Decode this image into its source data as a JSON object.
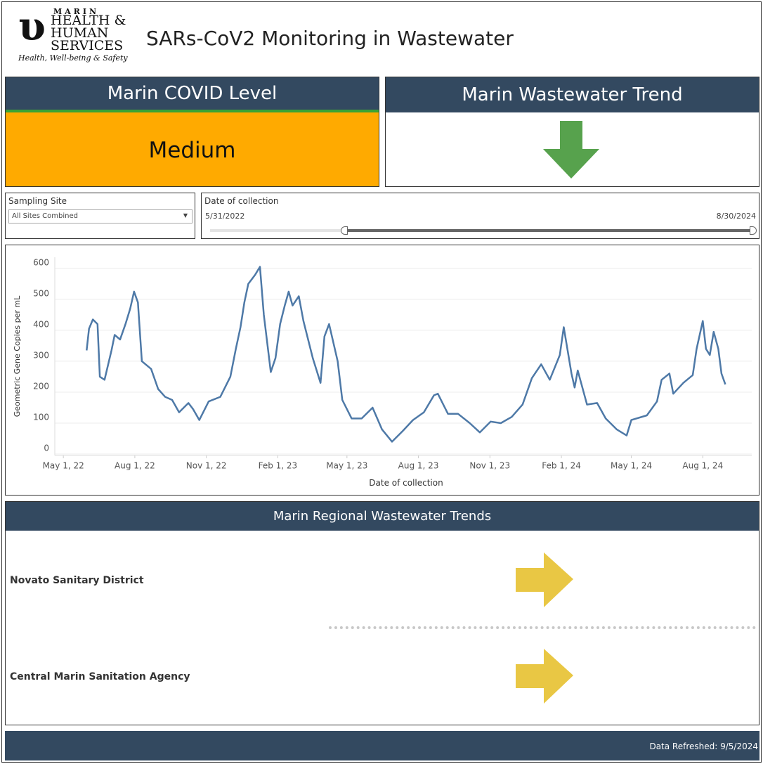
{
  "header": {
    "logo": {
      "line1": "MARIN",
      "line2": "HEALTH &",
      "line3": "HUMAN",
      "line4": "SERVICES",
      "tagline": "Health, Well-being & Safety"
    },
    "title": "SARs-CoV2 Monitoring in Wastewater"
  },
  "cards": {
    "level": {
      "title": "Marin COVID Level",
      "value": "Medium"
    },
    "trend": {
      "title": "Marin Wastewater Trend"
    }
  },
  "filters": {
    "site": {
      "label": "Sampling Site",
      "value": "All Sites Combined"
    },
    "date": {
      "label": "Date of collection",
      "start": "5/31/2022",
      "end": "8/30/2024"
    }
  },
  "chart_data": {
    "type": "line",
    "xlabel": "Date of collection",
    "ylabel": "Geometric Gene Copies per mL",
    "color": "#4e79a7",
    "grid": true,
    "xlim": [
      "2022-04-20",
      "2024-10-03"
    ],
    "xticks": [
      {
        "value": "2022-05-01",
        "label": "May 1, 22"
      },
      {
        "value": "2022-08-01",
        "label": "Aug 1, 22"
      },
      {
        "value": "2022-11-01",
        "label": "Nov 1, 22"
      },
      {
        "value": "2023-02-01",
        "label": "Feb 1, 23"
      },
      {
        "value": "2023-05-01",
        "label": "May 1, 23"
      },
      {
        "value": "2023-08-01",
        "label": "Aug 1, 23"
      },
      {
        "value": "2023-11-01",
        "label": "Nov 1, 23"
      },
      {
        "value": "2024-02-01",
        "label": "Feb 1, 24"
      },
      {
        "value": "2024-05-01",
        "label": "May 1, 24"
      },
      {
        "value": "2024-08-01",
        "label": "Aug 1, 24"
      }
    ],
    "ylim": [
      0,
      636
    ],
    "yticks": [
      0,
      100,
      200,
      300,
      400,
      500,
      600
    ],
    "x": [
      "2022-05-31",
      "2022-06-03",
      "2022-06-08",
      "2022-06-14",
      "2022-06-17",
      "2022-06-23",
      "2022-07-02",
      "2022-07-06",
      "2022-07-13",
      "2022-07-20",
      "2022-07-26",
      "2022-07-31",
      "2022-08-05",
      "2022-08-10",
      "2022-08-22",
      "2022-08-31",
      "2022-09-09",
      "2022-09-18",
      "2022-09-27",
      "2022-10-09",
      "2022-10-15",
      "2022-10-23",
      "2022-11-04",
      "2022-11-19",
      "2022-12-02",
      "2022-12-09",
      "2022-12-15",
      "2022-12-20",
      "2022-12-25",
      "2023-01-03",
      "2023-01-09",
      "2023-01-14",
      "2023-01-23",
      "2023-01-29",
      "2023-02-04",
      "2023-02-10",
      "2023-02-15",
      "2023-02-20",
      "2023-02-28",
      "2023-03-06",
      "2023-03-18",
      "2023-03-28",
      "2023-04-02",
      "2023-04-08",
      "2023-04-19",
      "2023-04-25",
      "2023-05-07",
      "2023-05-20",
      "2023-06-03",
      "2023-06-15",
      "2023-06-28",
      "2023-07-12",
      "2023-07-25",
      "2023-08-08",
      "2023-08-21",
      "2023-08-26",
      "2023-09-08",
      "2023-09-21",
      "2023-10-06",
      "2023-10-19",
      "2023-11-02",
      "2023-11-15",
      "2023-11-29",
      "2023-12-13",
      "2023-12-25",
      "2024-01-06",
      "2024-01-17",
      "2024-01-30",
      "2024-02-04",
      "2024-02-14",
      "2024-02-18",
      "2024-02-22",
      "2024-03-05",
      "2024-03-18",
      "2024-03-29",
      "2024-04-12",
      "2024-04-25",
      "2024-05-01",
      "2024-05-21",
      "2024-06-03",
      "2024-06-09",
      "2024-06-19",
      "2024-06-24",
      "2024-07-07",
      "2024-07-19",
      "2024-07-24",
      "2024-08-01",
      "2024-08-05",
      "2024-08-10",
      "2024-08-15",
      "2024-08-21",
      "2024-08-25",
      "2024-08-30"
    ],
    "values": [
      335,
      405,
      435,
      420,
      250,
      240,
      335,
      385,
      370,
      420,
      470,
      525,
      490,
      300,
      275,
      210,
      185,
      175,
      135,
      165,
      145,
      110,
      170,
      185,
      250,
      340,
      410,
      490,
      550,
      580,
      605,
      450,
      265,
      310,
      420,
      480,
      525,
      480,
      510,
      430,
      310,
      230,
      380,
      420,
      300,
      175,
      115,
      115,
      150,
      80,
      40,
      75,
      110,
      135,
      190,
      195,
      130,
      130,
      100,
      70,
      105,
      100,
      120,
      160,
      245,
      290,
      240,
      320,
      410,
      260,
      215,
      270,
      160,
      165,
      115,
      80,
      60,
      110,
      125,
      170,
      240,
      260,
      195,
      230,
      255,
      340,
      430,
      340,
      320,
      395,
      340,
      260,
      225
    ]
  },
  "regional": {
    "title": "Marin Regional Wastewater Trends",
    "rows": [
      "Novato Sanitary District",
      "Central Marin Sanitation Agency"
    ]
  },
  "footer": {
    "refreshed": "Data Refreshed: 9/5/2024"
  }
}
